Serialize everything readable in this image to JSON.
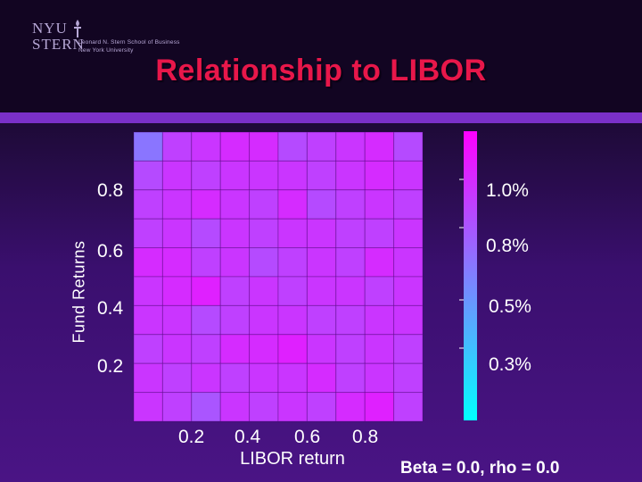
{
  "logo": {
    "nyu": "NYU",
    "stern": "STERN",
    "school": "Leonard N. Stern School of Business",
    "university": "New York University"
  },
  "title": "Relationship to LIBOR",
  "note": "Beta = 0.0, rho = 0.0",
  "colors": {
    "title": "#e8174a",
    "colorbar_top": "#ff00ff",
    "colorbar_bottom": "#00ffff"
  },
  "chart_data": {
    "type": "heatmap",
    "title": "",
    "xlabel": "LIBOR return",
    "ylabel": "Fund Returns",
    "xlim": [
      0,
      1
    ],
    "ylim": [
      0,
      1
    ],
    "x_ticks": [
      0.2,
      0.4,
      0.6,
      0.8
    ],
    "x_tick_labels": [
      "0.2",
      "0.4",
      "0.6",
      "0.8"
    ],
    "y_ticks": [
      0.2,
      0.4,
      0.6,
      0.8
    ],
    "y_tick_labels": [
      "0.2",
      "0.4",
      "0.6",
      "0.8"
    ],
    "grid": true,
    "colorbar": {
      "range": [
        0.0,
        1.2
      ],
      "ticks": [
        1.0,
        0.8,
        0.5,
        0.3
      ],
      "tick_labels": [
        "1.0%",
        "0.8%",
        "0.5%",
        "0.3%"
      ]
    },
    "rows": 10,
    "cols": 10,
    "values": [
      [
        0.65,
        0.9,
        0.95,
        1.0,
        1.0,
        0.85,
        0.9,
        0.95,
        1.0,
        0.85
      ],
      [
        0.85,
        0.95,
        0.9,
        0.95,
        0.95,
        0.95,
        0.9,
        0.95,
        1.0,
        0.95
      ],
      [
        0.9,
        0.95,
        1.0,
        0.95,
        0.9,
        1.0,
        0.85,
        0.9,
        0.95,
        0.9
      ],
      [
        0.9,
        0.95,
        0.85,
        0.95,
        0.9,
        0.95,
        0.95,
        0.9,
        0.9,
        0.95
      ],
      [
        1.0,
        1.0,
        0.9,
        0.95,
        0.85,
        0.9,
        0.95,
        0.9,
        1.0,
        0.95
      ],
      [
        0.95,
        1.0,
        1.05,
        0.9,
        0.95,
        0.9,
        0.95,
        0.95,
        0.9,
        0.95
      ],
      [
        0.95,
        0.95,
        0.85,
        0.9,
        0.95,
        0.95,
        0.9,
        0.9,
        0.95,
        0.95
      ],
      [
        0.9,
        0.95,
        0.9,
        1.0,
        1.0,
        1.05,
        0.95,
        0.9,
        0.95,
        0.9
      ],
      [
        0.95,
        0.9,
        0.95,
        0.9,
        0.95,
        0.95,
        1.0,
        0.9,
        0.95,
        0.9
      ],
      [
        0.95,
        0.9,
        0.8,
        0.95,
        0.9,
        0.95,
        0.9,
        1.0,
        1.05,
        0.9
      ]
    ]
  }
}
